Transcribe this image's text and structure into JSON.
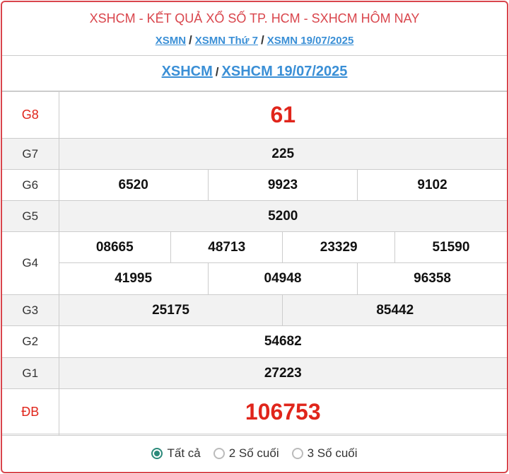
{
  "header": {
    "title": "XSHCM - KẾT QUẢ XỔ SỐ TP. HCM - SXHCM HÔM NAY",
    "crumbs": [
      "XSMN",
      "XSMN Thứ 7",
      "XSMN 19/07/2025"
    ],
    "separator": "/"
  },
  "subheader": {
    "links": [
      "XSHCM",
      "XSHCM 19/07/2025"
    ]
  },
  "prizes": {
    "g8": {
      "label": "G8",
      "values": [
        "61"
      ]
    },
    "g7": {
      "label": "G7",
      "values": [
        "225"
      ]
    },
    "g6": {
      "label": "G6",
      "values": [
        "6520",
        "9923",
        "9102"
      ]
    },
    "g5": {
      "label": "G5",
      "values": [
        "5200"
      ]
    },
    "g4": {
      "label": "G4",
      "values": [
        "08665",
        "48713",
        "23329",
        "51590",
        "41995",
        "04948",
        "96358"
      ]
    },
    "g3": {
      "label": "G3",
      "values": [
        "25175",
        "85442"
      ]
    },
    "g2": {
      "label": "G2",
      "values": [
        "54682"
      ]
    },
    "g1": {
      "label": "G1",
      "values": [
        "27223"
      ]
    },
    "db": {
      "label": "ĐB",
      "values": [
        "106753"
      ]
    }
  },
  "filter": {
    "options": [
      "Tất cả",
      "2 Số cuối",
      "3 Số cuối"
    ],
    "selected": "Tất cả"
  },
  "colors": {
    "accent": "#d9454c",
    "link": "#3a8fd6",
    "prize_red": "#e0251b",
    "radio": "#2b8a7a"
  }
}
